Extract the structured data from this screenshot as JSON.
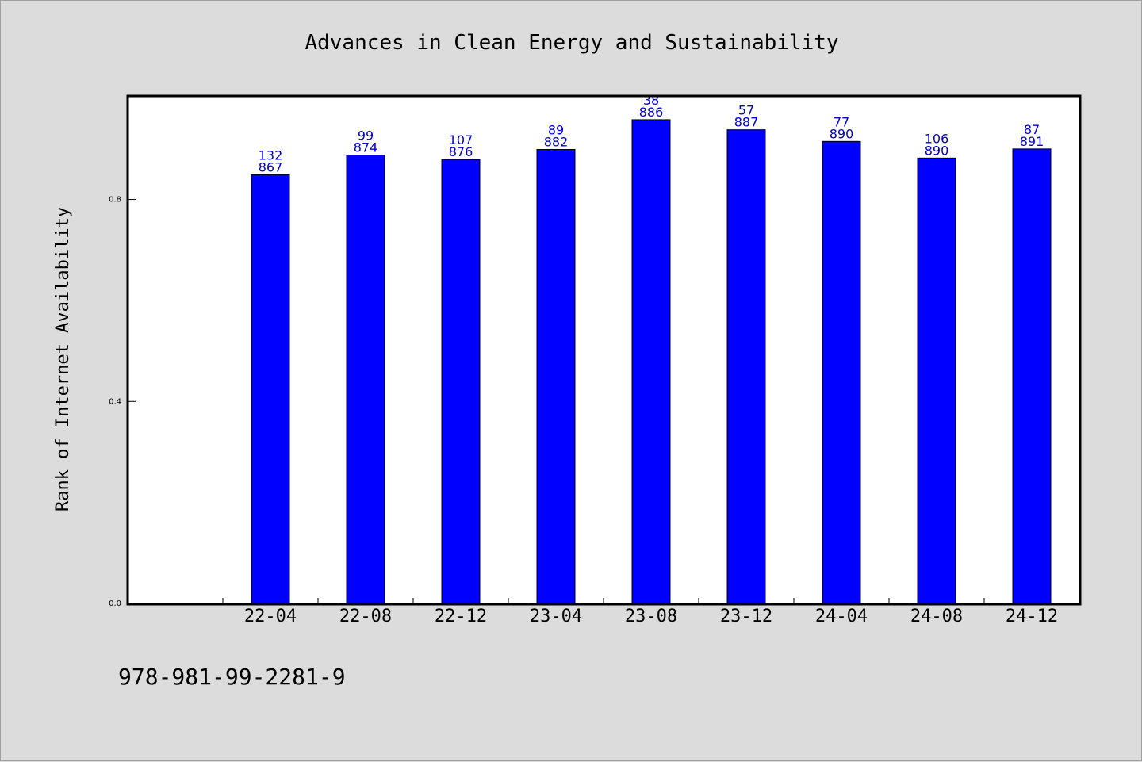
{
  "chart_data": {
    "type": "bar",
    "title": "Advances in Clean Energy and Sustainability",
    "xlabel": "",
    "ylabel": "Rank of Internet Availability",
    "categories": [
      "22-04",
      "22-08",
      "22-12",
      "23-04",
      "23-08",
      "23-12",
      "24-04",
      "24-08",
      "24-12"
    ],
    "series": [
      {
        "values": [
          0.849,
          0.888,
          0.879,
          0.899,
          0.958,
          0.938,
          0.915,
          0.882,
          0.9
        ],
        "top_labels": [
          "132",
          "99",
          "107",
          "89",
          "38",
          "57",
          "77",
          "106",
          "87"
        ],
        "bottom_labels": [
          "867",
          "874",
          "876",
          "882",
          "886",
          "887",
          "890",
          "890",
          "891"
        ]
      }
    ],
    "yticks": [
      "0.0",
      "0.4",
      "0.8"
    ],
    "ylim": [
      0,
      1.005
    ],
    "grid": false,
    "legend": "none",
    "colors": {
      "bar": "#0000ff",
      "label": "#0000cc",
      "background": "#dcdcdc",
      "plot_bg": "#ffffff"
    }
  },
  "footer": {
    "isbn": "978-981-99-2281-9"
  }
}
